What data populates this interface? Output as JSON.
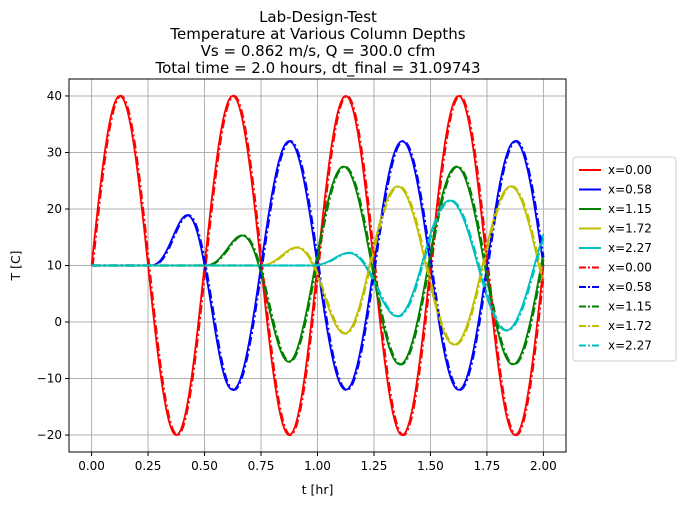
{
  "chart_data": {
    "type": "line",
    "title_lines": [
      "Lab-Design-Test",
      "Temperature at Various Column Depths",
      "Vs = 0.862 m/s, Q = 300.0 cfm",
      "Total time = 2.0 hours, dt_final = 31.09743"
    ],
    "xlabel": "t [hr]",
    "ylabel": "T [C]",
    "xlim": [
      -0.1,
      2.1
    ],
    "ylim": [
      -23,
      43
    ],
    "xticks": [
      0.0,
      0.25,
      0.5,
      0.75,
      1.0,
      1.25,
      1.5,
      1.75,
      2.0
    ],
    "xtick_labels": [
      "0.00",
      "0.25",
      "0.50",
      "0.75",
      "1.00",
      "1.25",
      "1.50",
      "1.75",
      "2.00"
    ],
    "yticks": [
      -20,
      -10,
      0,
      10,
      20,
      30,
      40
    ],
    "ytick_labels": [
      "−20",
      "−10",
      "0",
      "10",
      "20",
      "30",
      "40"
    ],
    "grid": true,
    "legend_position": "outside-right",
    "t_start": 0.0,
    "t_end": 2.0,
    "boundary_period_hr": 0.5,
    "series": [
      {
        "name": "x=0.00",
        "style": "solid",
        "color": "#ff0000",
        "baseline": 10,
        "amplitude": 30,
        "lag_hr": 0.0,
        "ramp_hr": 0.0
      },
      {
        "name": "x=0.58",
        "style": "solid",
        "color": "#0000ff",
        "baseline": 10,
        "amplitude": 22,
        "lag_hr": 0.25,
        "ramp_hr": 0.35
      },
      {
        "name": "x=1.15",
        "style": "solid",
        "color": "#008000",
        "baseline": 10,
        "amplitude": 17.5,
        "lag_hr": 0.49,
        "ramp_hr": 0.42
      },
      {
        "name": "x=1.72",
        "style": "solid",
        "color": "#bfbf00",
        "baseline": 10,
        "amplitude": 14,
        "lag_hr": 0.73,
        "ramp_hr": 0.5
      },
      {
        "name": "x=2.27",
        "style": "solid",
        "color": "#00bfbf",
        "baseline": 10,
        "amplitude": 11.5,
        "lag_hr": 0.96,
        "ramp_hr": 0.55
      },
      {
        "name": "x=0.00",
        "style": "dashdot",
        "color": "#ff0000",
        "baseline": 10,
        "amplitude": 30,
        "lag_hr": 0.005,
        "ramp_hr": 0.0
      },
      {
        "name": "x=0.58",
        "style": "dashdot",
        "color": "#0000ff",
        "baseline": 10,
        "amplitude": 22,
        "lag_hr": 0.255,
        "ramp_hr": 0.35
      },
      {
        "name": "x=1.15",
        "style": "dashdot",
        "color": "#008000",
        "baseline": 10,
        "amplitude": 17.5,
        "lag_hr": 0.495,
        "ramp_hr": 0.42
      },
      {
        "name": "x=1.72",
        "style": "dashdot",
        "color": "#bfbf00",
        "baseline": 10,
        "amplitude": 14,
        "lag_hr": 0.735,
        "ramp_hr": 0.5
      },
      {
        "name": "x=2.27",
        "style": "dashdot",
        "color": "#00bfbf",
        "baseline": 10,
        "amplitude": 11.5,
        "lag_hr": 0.965,
        "ramp_hr": 0.55
      }
    ]
  }
}
